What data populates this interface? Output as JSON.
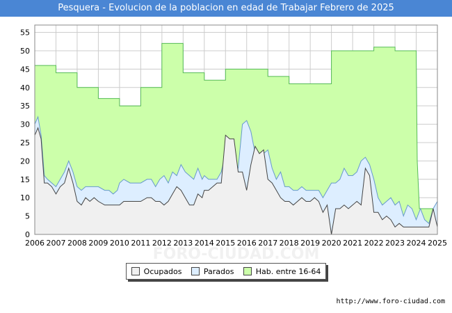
{
  "chart_data": {
    "type": "area",
    "title": "Pesquera - Evolucion de la poblacion en edad de Trabajar Febrero de 2025",
    "xlabel": "",
    "ylabel": "",
    "ylim": [
      0,
      57
    ],
    "yticks": [
      0,
      5,
      10,
      15,
      20,
      25,
      30,
      35,
      40,
      45,
      50,
      55
    ],
    "xlim": [
      2006,
      2025
    ],
    "xticks": [
      "2006",
      "2007",
      "2008",
      "2009",
      "2010",
      "2011",
      "2012",
      "2013",
      "2014",
      "2015",
      "2016",
      "2017",
      "2018",
      "2019",
      "2020",
      "2021",
      "2022",
      "2023",
      "2024",
      "2025"
    ],
    "grid": true,
    "legend_position": "bottom",
    "watermark": "FORO-CIUDAD.COM",
    "series": [
      {
        "name": "Hab. entre 16-64",
        "color": "#ccffaa",
        "line": "#55bb55",
        "step": true,
        "points": [
          [
            2006,
            46
          ],
          [
            2007,
            44
          ],
          [
            2008,
            40
          ],
          [
            2009,
            37
          ],
          [
            2010,
            35
          ],
          [
            2011,
            40
          ],
          [
            2012,
            52
          ],
          [
            2013,
            44
          ],
          [
            2014,
            42
          ],
          [
            2015,
            45
          ],
          [
            2016,
            45
          ],
          [
            2017,
            43
          ],
          [
            2018,
            41
          ],
          [
            2019,
            41
          ],
          [
            2020,
            50
          ],
          [
            2021,
            50
          ],
          [
            2022,
            51
          ],
          [
            2023,
            50
          ],
          [
            2024,
            50
          ],
          [
            2024.05,
            20
          ],
          [
            2024.15,
            7
          ],
          [
            2025,
            9
          ]
        ]
      },
      {
        "name": "Parados",
        "color": "#ddeeff",
        "line": "#6699cc",
        "points": [
          [
            2006,
            30
          ],
          [
            2006.15,
            32
          ],
          [
            2006.3,
            27
          ],
          [
            2006.45,
            16
          ],
          [
            2006.6,
            15
          ],
          [
            2006.8,
            14
          ],
          [
            2007,
            13
          ],
          [
            2007.2,
            15
          ],
          [
            2007.4,
            17
          ],
          [
            2007.6,
            20
          ],
          [
            2007.8,
            17
          ],
          [
            2008,
            13
          ],
          [
            2008.2,
            12
          ],
          [
            2008.4,
            13
          ],
          [
            2008.6,
            13
          ],
          [
            2008.8,
            13
          ],
          [
            2009,
            13
          ],
          [
            2009.3,
            12
          ],
          [
            2009.5,
            12
          ],
          [
            2009.7,
            11
          ],
          [
            2009.9,
            12
          ],
          [
            2010,
            14
          ],
          [
            2010.2,
            15
          ],
          [
            2010.5,
            14
          ],
          [
            2010.8,
            14
          ],
          [
            2011,
            14
          ],
          [
            2011.3,
            15
          ],
          [
            2011.5,
            15
          ],
          [
            2011.7,
            13
          ],
          [
            2011.9,
            15
          ],
          [
            2012.1,
            16
          ],
          [
            2012.3,
            14
          ],
          [
            2012.5,
            17
          ],
          [
            2012.7,
            16
          ],
          [
            2012.9,
            19
          ],
          [
            2013.1,
            17
          ],
          [
            2013.3,
            16
          ],
          [
            2013.5,
            15
          ],
          [
            2013.7,
            18
          ],
          [
            2013.9,
            15
          ],
          [
            2014,
            16
          ],
          [
            2014.2,
            15
          ],
          [
            2014.4,
            15
          ],
          [
            2014.6,
            15
          ],
          [
            2014.8,
            17
          ],
          [
            2015,
            22
          ],
          [
            2015.2,
            18
          ],
          [
            2015.4,
            18
          ],
          [
            2015.6,
            18
          ],
          [
            2015.8,
            30
          ],
          [
            2016,
            31
          ],
          [
            2016.2,
            28
          ],
          [
            2016.4,
            22
          ],
          [
            2016.6,
            22
          ],
          [
            2016.8,
            22
          ],
          [
            2017,
            23
          ],
          [
            2017.2,
            18
          ],
          [
            2017.4,
            15
          ],
          [
            2017.6,
            17
          ],
          [
            2017.8,
            13
          ],
          [
            2018,
            13
          ],
          [
            2018.2,
            12
          ],
          [
            2018.4,
            12
          ],
          [
            2018.6,
            13
          ],
          [
            2018.8,
            12
          ],
          [
            2019,
            12
          ],
          [
            2019.2,
            12
          ],
          [
            2019.4,
            12
          ],
          [
            2019.6,
            10
          ],
          [
            2019.8,
            12
          ],
          [
            2020,
            14
          ],
          [
            2020.2,
            14
          ],
          [
            2020.4,
            15
          ],
          [
            2020.6,
            18
          ],
          [
            2020.8,
            16
          ],
          [
            2021,
            16
          ],
          [
            2021.2,
            17
          ],
          [
            2021.4,
            20
          ],
          [
            2021.6,
            21
          ],
          [
            2021.8,
            19
          ],
          [
            2022,
            15
          ],
          [
            2022.2,
            10
          ],
          [
            2022.4,
            8
          ],
          [
            2022.6,
            9
          ],
          [
            2022.8,
            10
          ],
          [
            2023,
            8
          ],
          [
            2023.2,
            9
          ],
          [
            2023.4,
            5
          ],
          [
            2023.6,
            8
          ],
          [
            2023.8,
            7
          ],
          [
            2024,
            4
          ],
          [
            2024.2,
            7
          ],
          [
            2024.4,
            4
          ],
          [
            2024.6,
            3
          ],
          [
            2024.8,
            7
          ],
          [
            2025,
            9
          ]
        ]
      },
      {
        "name": "Ocupados",
        "color": "#f0f0f0",
        "line": "#444444",
        "points": [
          [
            2006,
            27
          ],
          [
            2006.15,
            29
          ],
          [
            2006.3,
            26
          ],
          [
            2006.45,
            14
          ],
          [
            2006.6,
            14
          ],
          [
            2006.8,
            13
          ],
          [
            2007,
            11
          ],
          [
            2007.2,
            13
          ],
          [
            2007.4,
            14
          ],
          [
            2007.6,
            18
          ],
          [
            2007.8,
            14
          ],
          [
            2008,
            9
          ],
          [
            2008.2,
            8
          ],
          [
            2008.4,
            10
          ],
          [
            2008.6,
            9
          ],
          [
            2008.8,
            10
          ],
          [
            2009,
            9
          ],
          [
            2009.3,
            8
          ],
          [
            2009.5,
            8
          ],
          [
            2009.7,
            8
          ],
          [
            2009.9,
            8
          ],
          [
            2010,
            8
          ],
          [
            2010.2,
            9
          ],
          [
            2010.5,
            9
          ],
          [
            2010.8,
            9
          ],
          [
            2011,
            9
          ],
          [
            2011.3,
            10
          ],
          [
            2011.5,
            10
          ],
          [
            2011.7,
            9
          ],
          [
            2011.9,
            9
          ],
          [
            2012.1,
            8
          ],
          [
            2012.3,
            9
          ],
          [
            2012.5,
            11
          ],
          [
            2012.7,
            13
          ],
          [
            2012.9,
            12
          ],
          [
            2013.1,
            10
          ],
          [
            2013.3,
            8
          ],
          [
            2013.5,
            8
          ],
          [
            2013.7,
            11
          ],
          [
            2013.9,
            10
          ],
          [
            2014,
            12
          ],
          [
            2014.2,
            12
          ],
          [
            2014.4,
            13
          ],
          [
            2014.6,
            14
          ],
          [
            2014.8,
            14
          ],
          [
            2015,
            27
          ],
          [
            2015.2,
            26
          ],
          [
            2015.4,
            26
          ],
          [
            2015.6,
            17
          ],
          [
            2015.8,
            17
          ],
          [
            2016,
            12
          ],
          [
            2016.2,
            19
          ],
          [
            2016.4,
            24
          ],
          [
            2016.6,
            22
          ],
          [
            2016.8,
            23
          ],
          [
            2017,
            15
          ],
          [
            2017.2,
            14
          ],
          [
            2017.4,
            12
          ],
          [
            2017.6,
            10
          ],
          [
            2017.8,
            9
          ],
          [
            2018,
            9
          ],
          [
            2018.2,
            8
          ],
          [
            2018.4,
            9
          ],
          [
            2018.6,
            10
          ],
          [
            2018.8,
            9
          ],
          [
            2019,
            9
          ],
          [
            2019.2,
            10
          ],
          [
            2019.4,
            9
          ],
          [
            2019.6,
            6
          ],
          [
            2019.8,
            8
          ],
          [
            2020,
            0
          ],
          [
            2020.2,
            7
          ],
          [
            2020.4,
            7
          ],
          [
            2020.6,
            8
          ],
          [
            2020.8,
            7
          ],
          [
            2021,
            8
          ],
          [
            2021.2,
            9
          ],
          [
            2021.4,
            8
          ],
          [
            2021.6,
            18
          ],
          [
            2021.8,
            16
          ],
          [
            2022,
            6
          ],
          [
            2022.2,
            6
          ],
          [
            2022.4,
            4
          ],
          [
            2022.6,
            5
          ],
          [
            2022.8,
            4
          ],
          [
            2023,
            2
          ],
          [
            2023.2,
            3
          ],
          [
            2023.4,
            2
          ],
          [
            2023.6,
            2
          ],
          [
            2023.8,
            2
          ],
          [
            2024,
            2
          ],
          [
            2024.2,
            2
          ],
          [
            2024.4,
            2
          ],
          [
            2024.6,
            2
          ],
          [
            2024.8,
            7
          ],
          [
            2025,
            2
          ]
        ]
      }
    ]
  },
  "legend": {
    "ocupados": "Ocupados",
    "parados": "Parados",
    "hab": "Hab. entre 16-64"
  },
  "source": "http://www.foro-ciudad.com"
}
